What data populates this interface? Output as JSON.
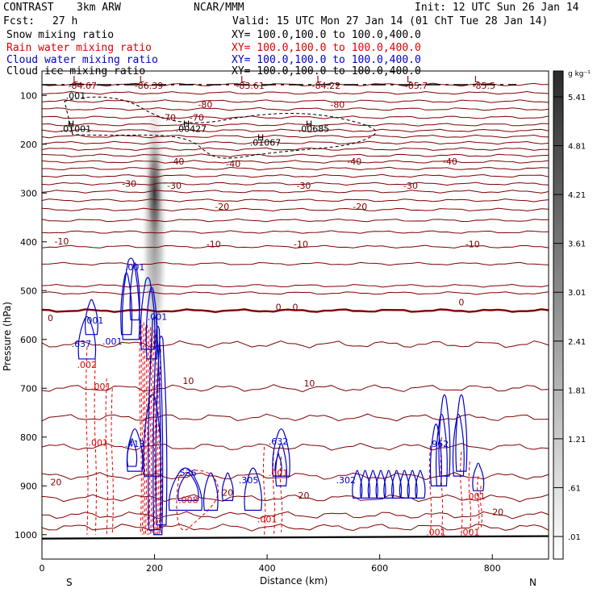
{
  "header": {
    "experiment": "CONTRAST",
    "model": "3km ARW",
    "center": "NCAR/MMM",
    "init": "Init: 12 UTC Sun 26 Jan 14",
    "fcst_label": "Fcst:",
    "fcst_value": "27 h",
    "valid": "Valid: 15 UTC Mon 27 Jan 14 (01 ChT Tue 28 Jan 14)",
    "fields": [
      {
        "label": "Snow mixing ratio",
        "xy": "XY=  100.0,100.0 to 100.0,400.0",
        "color": "#000000"
      },
      {
        "label": "Rain water mixing ratio",
        "xy": "XY=  100.0,100.0 to 100.0,400.0",
        "color": "#e00000"
      },
      {
        "label": "Cloud water mixing ratio",
        "xy": "XY=  100.0,100.0 to 100.0,400.0",
        "color": "#0000c8"
      },
      {
        "label": "Cloud ice mixing ratio",
        "xy": "XY=  100.0,100.0 to 100.0,400.0",
        "color": "#000000"
      }
    ]
  },
  "chart_data": {
    "type": "heatmap",
    "title": "Snow mixing ratio",
    "xlabel": "Distance (km)",
    "ylabel": "Pressure (hPa)",
    "x_ticks": [
      0,
      200,
      400,
      600,
      800
    ],
    "y_ticks": [
      100,
      200,
      300,
      400,
      500,
      600,
      700,
      800,
      900,
      1000
    ],
    "xlim": [
      0,
      900
    ],
    "ylim": [
      1050,
      50
    ],
    "direction_labels": {
      "left": "S",
      "right": "N"
    },
    "colorbar": {
      "unit": "g kg⁻¹",
      "ticks": [
        ".01",
        ".61",
        "1.21",
        "1.81",
        "2.41",
        "3.01",
        "3.61",
        "4.21",
        "4.81",
        "5.41"
      ]
    },
    "colors": {
      "temperature": "#800000",
      "rain": "#e00000",
      "cloud_water": "#0000c8",
      "ice": "#000000",
      "snow_max": "#3a3a3a"
    },
    "temperature_labels": [
      {
        "text": "-80",
        "x": 290,
        "p": 125
      },
      {
        "text": "-80",
        "x": 525,
        "p": 125
      },
      {
        "text": "-70",
        "x": 225,
        "p": 152
      },
      {
        "text": "-70",
        "x": 275,
        "p": 152
      },
      {
        "text": "-40",
        "x": 240,
        "p": 242
      },
      {
        "text": "-40",
        "x": 340,
        "p": 247
      },
      {
        "text": "-40",
        "x": 555,
        "p": 242
      },
      {
        "text": "-40",
        "x": 725,
        "p": 242
      },
      {
        "text": "-30",
        "x": 155,
        "p": 287
      },
      {
        "text": "-30",
        "x": 235,
        "p": 291
      },
      {
        "text": "-30",
        "x": 465,
        "p": 291
      },
      {
        "text": "-30",
        "x": 655,
        "p": 291
      },
      {
        "text": "-20",
        "x": 320,
        "p": 334
      },
      {
        "text": "-20",
        "x": 565,
        "p": 334
      },
      {
        "text": "-10",
        "x": 35,
        "p": 405
      },
      {
        "text": "-10",
        "x": 305,
        "p": 411
      },
      {
        "text": "-10",
        "x": 460,
        "p": 411
      },
      {
        "text": "-10",
        "x": 765,
        "p": 411
      },
      {
        "text": "0",
        "x": 15,
        "p": 562
      },
      {
        "text": "0",
        "x": 420,
        "p": 540
      },
      {
        "text": "0",
        "x": 450,
        "p": 540
      },
      {
        "text": "0",
        "x": 745,
        "p": 530
      },
      {
        "text": "10",
        "x": 260,
        "p": 691
      },
      {
        "text": "10",
        "x": 475,
        "p": 696
      },
      {
        "text": "20",
        "x": 25,
        "p": 899
      },
      {
        "text": "20",
        "x": 330,
        "p": 920
      },
      {
        "text": "20",
        "x": 465,
        "p": 926
      },
      {
        "text": "20",
        "x": 810,
        "p": 960
      }
    ],
    "low_labels": [
      {
        "text": "-84.67",
        "x": 72,
        "p": 86
      },
      {
        "text": "-86.39",
        "x": 190,
        "p": 86
      },
      {
        "text": "-83.61",
        "x": 370,
        "p": 86
      },
      {
        "text": "-84.22",
        "x": 505,
        "p": 86
      },
      {
        "text": "-85.7",
        "x": 665,
        "p": 86
      },
      {
        "text": "-85.5",
        "x": 785,
        "p": 86
      }
    ],
    "ice_labels": [
      {
        "text": ".001",
        "x": 60,
        "p": 107
      },
      {
        "text": ".01001",
        "x": 60,
        "p": 175
      },
      {
        "text": ".00427",
        "x": 265,
        "p": 175
      },
      {
        "text": ".01067",
        "x": 397,
        "p": 203
      },
      {
        "text": ".00685",
        "x": 483,
        "p": 175
      }
    ],
    "cloud_water_labels": [
      {
        "text": ".001",
        "x": 165,
        "p": 458
      },
      {
        "text": ".001",
        "x": 92,
        "p": 567
      },
      {
        "text": ".001",
        "x": 125,
        "p": 610
      },
      {
        "text": ".001",
        "x": 205,
        "p": 560
      },
      {
        "text": ".637",
        "x": 70,
        "p": 615
      },
      {
        "text": ".413",
        "x": 165,
        "p": 820
      },
      {
        "text": ".536",
        "x": 257,
        "p": 880
      },
      {
        "text": ".305",
        "x": 367,
        "p": 895
      },
      {
        "text": ".632",
        "x": 420,
        "p": 815
      },
      {
        "text": ".302",
        "x": 540,
        "p": 895
      },
      {
        "text": ".962",
        "x": 705,
        "p": 820
      }
    ],
    "rain_labels": [
      {
        "text": ".002",
        "x": 80,
        "p": 658
      },
      {
        "text": ".001",
        "x": 105,
        "p": 703
      },
      {
        "text": ".001",
        "x": 100,
        "p": 818
      },
      {
        "text": ".008",
        "x": 260,
        "p": 935
      },
      {
        "text": ".001",
        "x": 400,
        "p": 975
      },
      {
        "text": ".001",
        "x": 420,
        "p": 880
      },
      {
        "text": ".001",
        "x": 700,
        "p": 1001
      },
      {
        "text": ".001",
        "x": 760,
        "p": 1001
      },
      {
        "text": ".001",
        "x": 770,
        "p": 928
      }
    ],
    "snow_max": {
      "x": 200,
      "p": 300,
      "value": 5.4
    }
  }
}
